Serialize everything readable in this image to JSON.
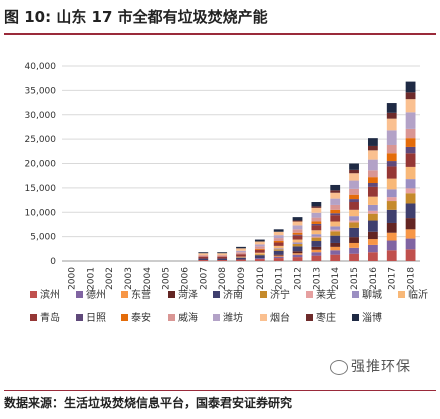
{
  "title": "图 10:  山东 17 市全都有垃圾焚烧产能",
  "source": "数据来源：生活垃圾焚烧信息平台，国泰君安证券研究",
  "watermark": "强推环保",
  "chart_data": {
    "type": "bar",
    "stacked": true,
    "categories": [
      "2000",
      "2001",
      "2002",
      "2003",
      "2004",
      "2005",
      "2006",
      "2007",
      "2008",
      "2009",
      "2010",
      "2011",
      "2012",
      "2013",
      "2014",
      "2015",
      "2016",
      "2017",
      "2018"
    ],
    "ylim": [
      0,
      40000
    ],
    "yticks": [
      "0",
      "5,000",
      "10,000",
      "15,000",
      "20,000",
      "25,000",
      "30,000",
      "35,000",
      "40,000"
    ],
    "grid": true,
    "legend_position": "bottom",
    "series": [
      {
        "name": "滨州",
        "color": "#c0504d",
        "values": [
          0,
          0,
          0,
          0,
          0,
          0,
          0,
          200,
          200,
          300,
          400,
          600,
          800,
          1100,
          1300,
          1500,
          1800,
          2200,
          2400
        ]
      },
      {
        "name": "德州",
        "color": "#8064a2",
        "values": [
          0,
          0,
          0,
          0,
          0,
          0,
          0,
          0,
          0,
          0,
          200,
          300,
          500,
          700,
          900,
          1200,
          1500,
          2000,
          2200
        ]
      },
      {
        "name": "东营",
        "color": "#f79646",
        "values": [
          0,
          0,
          0,
          0,
          0,
          0,
          0,
          0,
          0,
          0,
          0,
          200,
          300,
          500,
          700,
          1000,
          1200,
          1600,
          1900
        ]
      },
      {
        "name": "菏泽",
        "color": "#632523",
        "values": [
          0,
          0,
          0,
          0,
          0,
          0,
          0,
          0,
          0,
          0,
          0,
          200,
          400,
          600,
          800,
          1200,
          1500,
          2000,
          2300
        ]
      },
      {
        "name": "济南",
        "color": "#3f3f6e",
        "values": [
          0,
          0,
          0,
          0,
          0,
          0,
          0,
          300,
          300,
          400,
          600,
          800,
          1000,
          1200,
          1500,
          1900,
          2300,
          2700,
          3000
        ]
      },
      {
        "name": "济宁",
        "color": "#c58a2b",
        "values": [
          0,
          0,
          0,
          0,
          0,
          0,
          0,
          0,
          0,
          0,
          200,
          300,
          500,
          700,
          900,
          1100,
          1400,
          1800,
          2100
        ]
      },
      {
        "name": "莱芜",
        "color": "#e6a0a0",
        "values": [
          0,
          0,
          0,
          0,
          0,
          0,
          0,
          0,
          0,
          0,
          0,
          0,
          0,
          200,
          300,
          400,
          600,
          800,
          1000
        ]
      },
      {
        "name": "聊城",
        "color": "#9b8fc2",
        "values": [
          0,
          0,
          0,
          0,
          0,
          0,
          0,
          0,
          0,
          0,
          0,
          200,
          300,
          500,
          700,
          900,
          1200,
          1600,
          1900
        ]
      },
      {
        "name": "临沂",
        "color": "#f8b878",
        "values": [
          0,
          0,
          0,
          0,
          0,
          0,
          0,
          0,
          0,
          200,
          300,
          500,
          600,
          800,
          1000,
          1300,
          1700,
          2200,
          2500
        ]
      },
      {
        "name": "青岛",
        "color": "#953735",
        "values": [
          0,
          0,
          0,
          0,
          0,
          0,
          0,
          400,
          400,
          500,
          600,
          700,
          800,
          1000,
          1300,
          1600,
          2000,
          2500,
          2800
        ]
      },
      {
        "name": "日照",
        "color": "#5f497a",
        "values": [
          0,
          0,
          0,
          0,
          0,
          0,
          0,
          0,
          0,
          0,
          0,
          0,
          200,
          300,
          400,
          600,
          800,
          1100,
          1300
        ]
      },
      {
        "name": "泰安",
        "color": "#e46c0a",
        "values": [
          0,
          0,
          0,
          0,
          0,
          0,
          0,
          0,
          0,
          0,
          200,
          300,
          400,
          500,
          700,
          900,
          1200,
          1600,
          1800
        ]
      },
      {
        "name": "威海",
        "color": "#d99694",
        "values": [
          0,
          0,
          0,
          0,
          0,
          0,
          0,
          300,
          300,
          400,
          500,
          600,
          700,
          800,
          1000,
          1200,
          1400,
          1700,
          1900
        ]
      },
      {
        "name": "潍坊",
        "color": "#b3a2c7",
        "values": [
          0,
          0,
          0,
          0,
          0,
          0,
          0,
          0,
          0,
          300,
          400,
          600,
          800,
          1000,
          1300,
          1700,
          2200,
          3000,
          3400
        ]
      },
      {
        "name": "烟台",
        "color": "#fac090",
        "values": [
          0,
          0,
          0,
          0,
          0,
          0,
          0,
          400,
          400,
          500,
          600,
          700,
          800,
          1000,
          1200,
          1500,
          1900,
          2400,
          2700
        ]
      },
      {
        "name": "枣庄",
        "color": "#6e2b2b",
        "values": [
          0,
          0,
          0,
          0,
          0,
          0,
          0,
          0,
          0,
          0,
          0,
          0,
          200,
          300,
          500,
          700,
          900,
          1200,
          1400
        ]
      },
      {
        "name": "淄博",
        "color": "#1f2a44",
        "values": [
          0,
          0,
          0,
          0,
          0,
          0,
          0,
          200,
          200,
          300,
          400,
          500,
          700,
          900,
          1100,
          1300,
          1600,
          2000,
          2200
        ]
      }
    ]
  }
}
